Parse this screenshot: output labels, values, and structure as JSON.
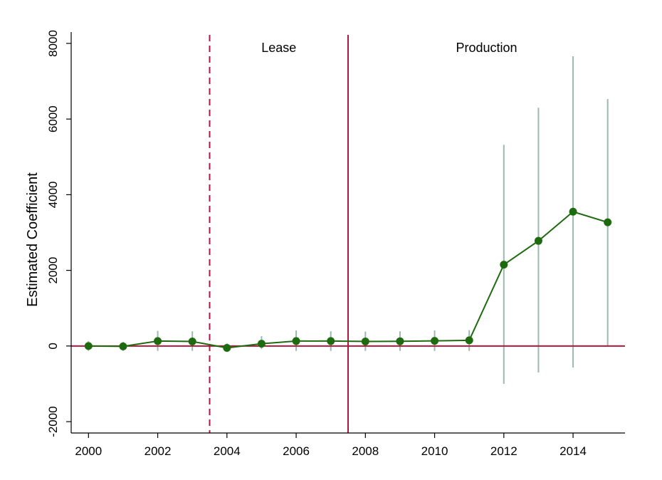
{
  "chart_data": {
    "type": "line",
    "title": "",
    "xlabel": "",
    "ylabel": "Estimated Coefficient",
    "xlim": [
      1999.5,
      2015.5
    ],
    "ylim": [
      -2300,
      8300
    ],
    "x_ticks": [
      2000,
      2002,
      2004,
      2006,
      2008,
      2010,
      2012,
      2014
    ],
    "y_ticks": [
      -2000,
      0,
      2000,
      4000,
      6000,
      8000
    ],
    "grid": false,
    "legend": "none",
    "series": [
      {
        "x": [
          2000,
          2001,
          2002,
          2003,
          2004,
          2005,
          2006,
          2007,
          2008,
          2009,
          2010,
          2011,
          2012,
          2013,
          2014,
          2015
        ],
        "values": [
          0,
          -10,
          130,
          120,
          -50,
          60,
          130,
          130,
          120,
          125,
          135,
          150,
          2150,
          2780,
          3550,
          3270
        ],
        "ci_low": [
          -130,
          -130,
          -130,
          -130,
          -160,
          -80,
          -130,
          -130,
          -130,
          -130,
          -130,
          -130,
          -1000,
          -700,
          -570,
          0
        ],
        "ci_high": [
          130,
          110,
          400,
          390,
          70,
          260,
          410,
          390,
          380,
          390,
          410,
          420,
          5320,
          6300,
          7660,
          6530
        ],
        "color": "#1e6b0f",
        "ci_color": "#9db8b3"
      }
    ],
    "reference_lines": [
      {
        "axis": "y",
        "value": 0,
        "style": "solid",
        "color": "#b0173e"
      },
      {
        "axis": "x",
        "value": 2003.5,
        "style": "dashed",
        "color": "#b0173e"
      },
      {
        "axis": "x",
        "value": 2007.5,
        "style": "solid",
        "color": "#b0173e"
      }
    ],
    "annotations": [
      {
        "text": "Lease",
        "x": 2005.5
      },
      {
        "text": "Production",
        "x": 2011.5
      }
    ]
  }
}
